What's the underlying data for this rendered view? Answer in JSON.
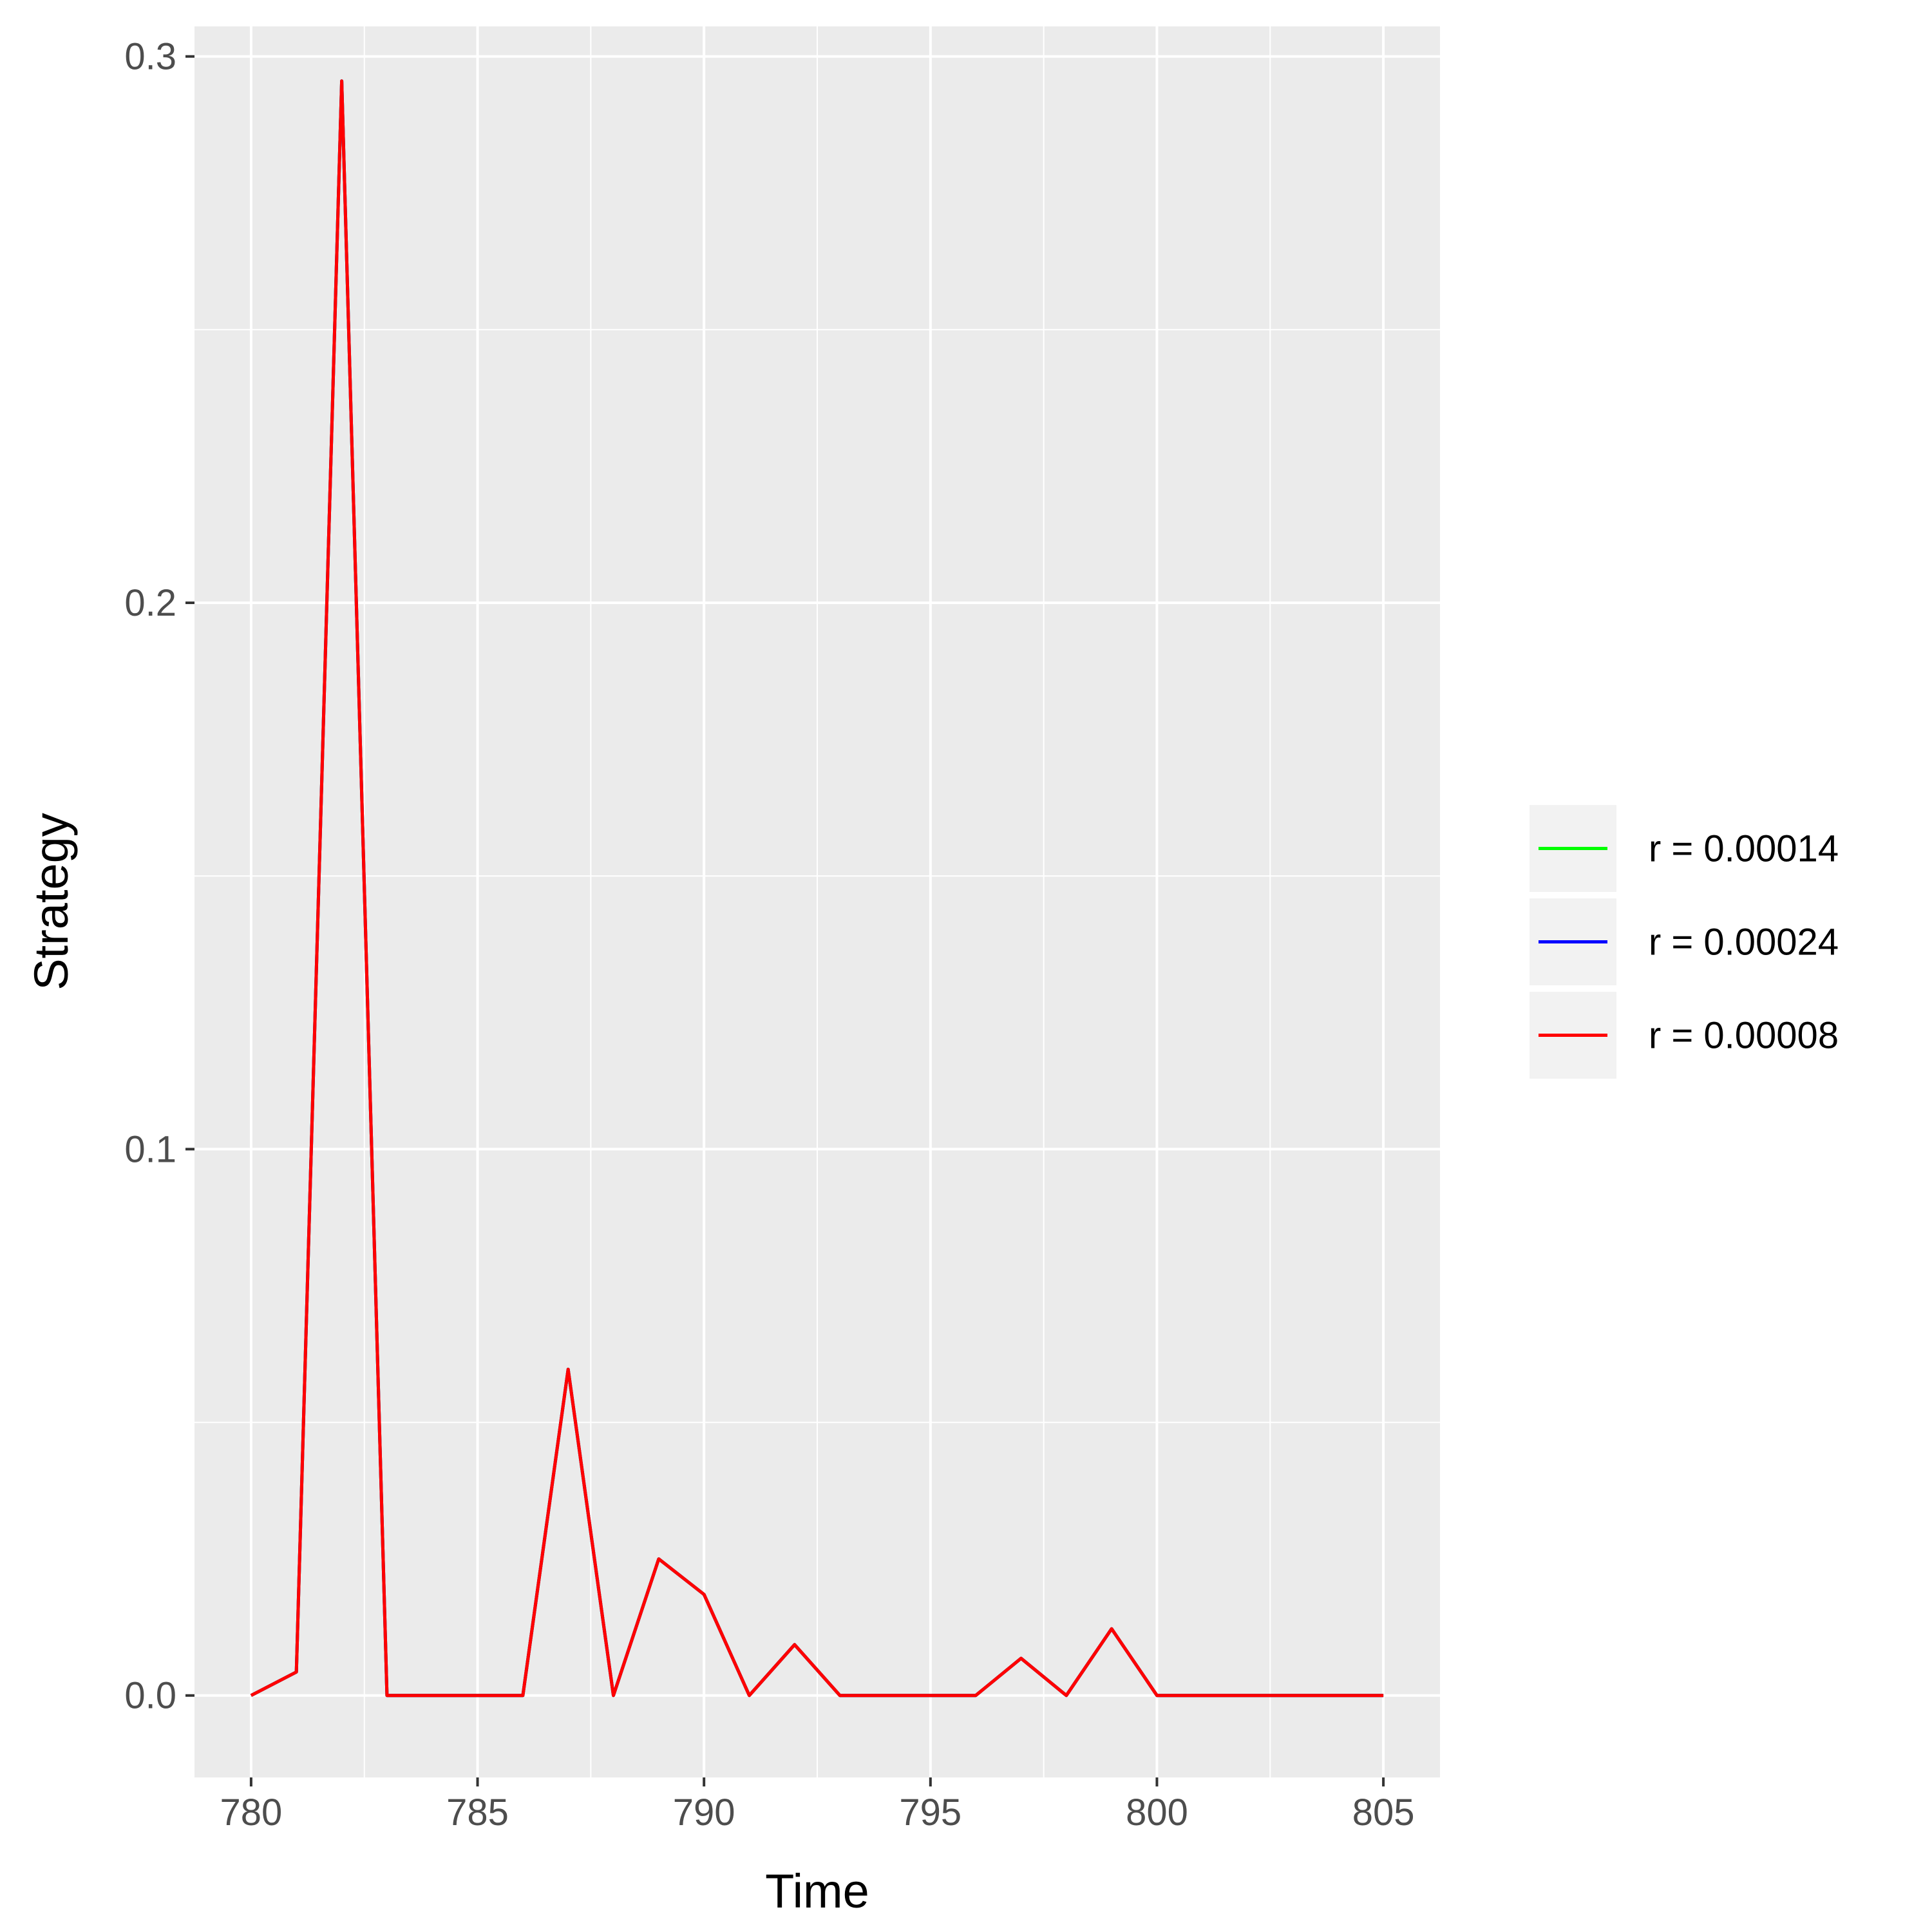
{
  "chart_data": {
    "type": "line",
    "title": "",
    "xlabel": "Time",
    "ylabel": "Strategy",
    "xlim": [
      778.75,
      806.25
    ],
    "ylim": [
      -0.015,
      0.3055
    ],
    "x_ticks": [
      780,
      785,
      790,
      795,
      800,
      805
    ],
    "x_tick_labels": [
      "780",
      "785",
      "790",
      "795",
      "800",
      "805"
    ],
    "y_ticks": [
      0.0,
      0.1,
      0.2,
      0.3
    ],
    "y_tick_labels": [
      "0.0",
      "0.1",
      "0.2",
      "0.3"
    ],
    "grid": true,
    "legend_position": "right",
    "x": [
      780,
      781,
      782,
      783,
      784,
      785,
      786,
      787,
      788,
      789,
      790,
      791,
      792,
      793,
      794,
      795,
      796,
      797,
      798,
      799,
      800,
      801,
      802,
      803,
      804,
      805
    ],
    "series": [
      {
        "name": "r = 0.00014",
        "color": "#00ff00",
        "values": [
          0.0,
          0.0043,
          0.2955,
          0.0,
          0.0,
          0.0,
          0.0,
          0.0597,
          0.0,
          0.025,
          0.0185,
          0.0,
          0.0093,
          0.0,
          0.0,
          0.0,
          0.0,
          0.0068,
          0.0,
          0.0122,
          0.0,
          0.0,
          0.0,
          0.0,
          0.0,
          0.0
        ]
      },
      {
        "name": "r = 0.00024",
        "color": "#0000ff",
        "values": [
          0.0,
          0.0043,
          0.2955,
          0.0,
          0.0,
          0.0,
          0.0,
          0.0597,
          0.0,
          0.025,
          0.0185,
          0.0,
          0.0093,
          0.0,
          0.0,
          0.0,
          0.0,
          0.0068,
          0.0,
          0.0122,
          0.0,
          0.0,
          0.0,
          0.0,
          0.0,
          0.0
        ]
      },
      {
        "name": "r = 0.00008",
        "color": "#ff0000",
        "values": [
          0.0,
          0.0043,
          0.2955,
          0.0,
          0.0,
          0.0,
          0.0,
          0.0597,
          0.0,
          0.025,
          0.0185,
          0.0,
          0.0093,
          0.0,
          0.0,
          0.0,
          0.0,
          0.0068,
          0.0,
          0.0122,
          0.0,
          0.0,
          0.0,
          0.0,
          0.0,
          0.0
        ]
      }
    ],
    "colors": {
      "panel_background": "#ebebeb",
      "grid": "#ffffff",
      "legend_key_background": "#f2f2f2",
      "tick_mark": "#333333"
    }
  }
}
